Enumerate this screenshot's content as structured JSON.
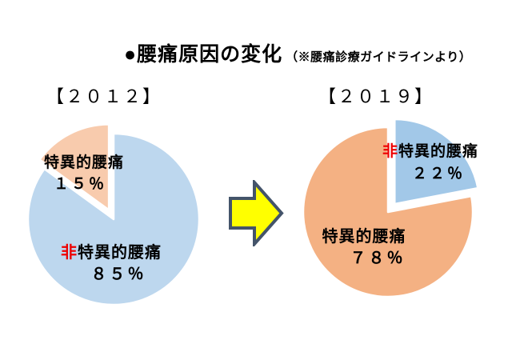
{
  "header": {
    "title": "●腰痛原因の変化",
    "note": "（※腰痛診療ガイドラインより）"
  },
  "arrow": {
    "name": "change-direction-arrow",
    "fill_color": "#ffff00",
    "border_color": "#44546a"
  },
  "chart_data": [
    {
      "type": "pie",
      "title": "【２０１２】",
      "start_angle_deg": 0,
      "direction": "clockwise",
      "legend_position": "none",
      "slices": [
        {
          "label_prefix": "非",
          "label_rest": "特異的腰痛",
          "value": 85,
          "percent_label": "８５％",
          "color": "#bdd7ee",
          "explode": 0
        },
        {
          "label_prefix": "",
          "label_rest": "特異的腰痛",
          "value": 15,
          "percent_label": "１５％",
          "color": "#f8cbad",
          "explode": 13
        }
      ]
    },
    {
      "type": "pie",
      "title": "【２０１９】",
      "start_angle_deg": 0,
      "direction": "clockwise",
      "legend_position": "none",
      "slices": [
        {
          "label_prefix": "非",
          "label_rest": "特異的腰痛",
          "value": 22,
          "percent_label": "２２％",
          "color": "#a2c8e8",
          "explode": 13
        },
        {
          "label_prefix": "",
          "label_rest": "特異的腰痛",
          "value": 78,
          "percent_label": "７８％",
          "color": "#f4b183",
          "explode": 0
        }
      ]
    }
  ]
}
